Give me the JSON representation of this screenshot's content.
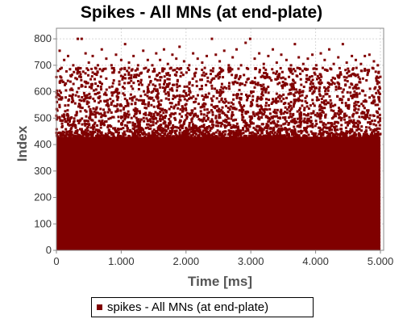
{
  "chart_data": {
    "type": "scatter",
    "title": "Spikes - All MNs (at end-plate)",
    "xlabel": "Time [ms]",
    "ylabel": "Index",
    "xlim": [
      0,
      5050
    ],
    "ylim": [
      0,
      840
    ],
    "x_ticks": [
      {
        "value": 0,
        "label": "0"
      },
      {
        "value": 1000,
        "label": "1.000"
      },
      {
        "value": 2000,
        "label": "2.000"
      },
      {
        "value": 3000,
        "label": "3.000"
      },
      {
        "value": 4000,
        "label": "4.000"
      },
      {
        "value": 5000,
        "label": "5.000"
      }
    ],
    "y_ticks": [
      {
        "value": 0,
        "label": "0"
      },
      {
        "value": 100,
        "label": "100"
      },
      {
        "value": 200,
        "label": "200"
      },
      {
        "value": 300,
        "label": "300"
      },
      {
        "value": 400,
        "label": "400"
      },
      {
        "value": 500,
        "label": "500"
      },
      {
        "value": 600,
        "label": "600"
      },
      {
        "value": 700,
        "label": "700"
      },
      {
        "value": 800,
        "label": "800"
      }
    ],
    "grid": true,
    "legend_position": "bottom",
    "series": [
      {
        "name": "spikes - All MNs (at end-plate)",
        "color": "#800000",
        "dense_region": {
          "x": [
            0,
            5000
          ],
          "y": [
            0,
            430
          ]
        },
        "points": [
          [
            50,
            755
          ],
          [
            120,
            720
          ],
          [
            180,
            735
          ],
          [
            260,
            700
          ],
          [
            330,
            800
          ],
          [
            390,
            800
          ],
          [
            450,
            745
          ],
          [
            500,
            710
          ],
          [
            560,
            735
          ],
          [
            640,
            700
          ],
          [
            700,
            760
          ],
          [
            770,
            725
          ],
          [
            850,
            700
          ],
          [
            920,
            740
          ],
          [
            1000,
            720
          ],
          [
            1060,
            780
          ],
          [
            1120,
            710
          ],
          [
            1190,
            735
          ],
          [
            1260,
            700
          ],
          [
            1340,
            755
          ],
          [
            1410,
            720
          ],
          [
            1480,
            700
          ],
          [
            1540,
            745
          ],
          [
            1600,
            720
          ],
          [
            1660,
            760
          ],
          [
            1720,
            705
          ],
          [
            1790,
            740
          ],
          [
            1850,
            725
          ],
          [
            1900,
            770
          ],
          [
            1970,
            715
          ],
          [
            2050,
            700
          ],
          [
            2110,
            745
          ],
          [
            2180,
            725
          ],
          [
            2250,
            710
          ],
          [
            2320,
            735
          ],
          [
            2400,
            800
          ],
          [
            2460,
            740
          ],
          [
            2520,
            715
          ],
          [
            2590,
            755
          ],
          [
            2660,
            700
          ],
          [
            2720,
            730
          ],
          [
            2780,
            760
          ],
          [
            2850,
            700
          ],
          [
            2920,
            785
          ],
          [
            2990,
            800
          ],
          [
            3060,
            725
          ],
          [
            3130,
            745
          ],
          [
            3200,
            705
          ],
          [
            3270,
            735
          ],
          [
            3340,
            760
          ],
          [
            3400,
            710
          ],
          [
            3470,
            740
          ],
          [
            3550,
            720
          ],
          [
            3620,
            700
          ],
          [
            3680,
            780
          ],
          [
            3740,
            730
          ],
          [
            3810,
            705
          ],
          [
            3880,
            725
          ],
          [
            3950,
            740
          ],
          [
            4010,
            700
          ],
          [
            4080,
            745
          ],
          [
            4140,
            720
          ],
          [
            4210,
            760
          ],
          [
            4280,
            705
          ],
          [
            4350,
            730
          ],
          [
            4420,
            780
          ],
          [
            4480,
            710
          ],
          [
            4560,
            735
          ],
          [
            4620,
            720
          ],
          [
            4700,
            705
          ],
          [
            4760,
            735
          ],
          [
            4830,
            740
          ],
          [
            4900,
            715
          ],
          [
            4960,
            700
          ],
          [
            80,
            690
          ],
          [
            210,
            685
          ],
          [
            340,
            690
          ],
          [
            470,
            688
          ],
          [
            600,
            690
          ],
          [
            730,
            686
          ],
          [
            860,
            689
          ],
          [
            990,
            684
          ],
          [
            1120,
            690
          ],
          [
            1250,
            687
          ],
          [
            1380,
            690
          ],
          [
            1510,
            686
          ],
          [
            1640,
            688
          ],
          [
            1770,
            690
          ],
          [
            1900,
            685
          ],
          [
            2030,
            689
          ],
          [
            2160,
            686
          ],
          [
            2290,
            690
          ],
          [
            2420,
            688
          ],
          [
            2550,
            685
          ],
          [
            2680,
            690
          ],
          [
            2810,
            687
          ],
          [
            2940,
            689
          ],
          [
            3070,
            686
          ],
          [
            3200,
            690
          ],
          [
            3330,
            685
          ],
          [
            3460,
            689
          ],
          [
            3590,
            687
          ],
          [
            3720,
            690
          ],
          [
            3850,
            686
          ],
          [
            3980,
            688
          ],
          [
            4110,
            690
          ],
          [
            4240,
            685
          ],
          [
            4370,
            689
          ],
          [
            4500,
            687
          ],
          [
            4630,
            690
          ],
          [
            4760,
            686
          ],
          [
            4890,
            688
          ]
        ]
      }
    ]
  }
}
